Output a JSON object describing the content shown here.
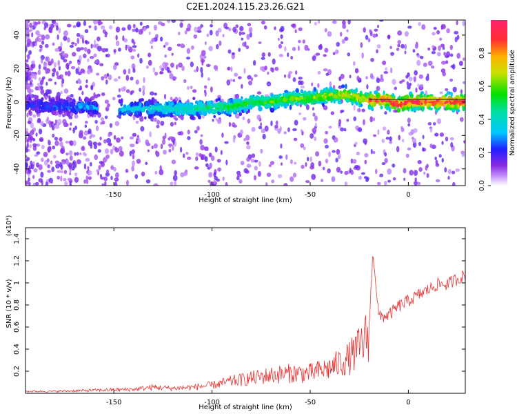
{
  "title": "C2E1.2024.115.23.26.G21",
  "chart_data": [
    {
      "type": "heatmap",
      "xlabel": "Height of straight line (km)",
      "ylabel": "Frequency (Hz)",
      "xlim": [
        -195,
        29
      ],
      "ylim": [
        -50,
        49
      ],
      "xticks": [
        -150,
        -100,
        -50,
        0
      ],
      "yticks": [
        -40,
        -20,
        0,
        20,
        40
      ],
      "colorbar": {
        "label": "Normalized spectral amplitude",
        "range": [
          0,
          1
        ],
        "ticks": [
          0.0,
          0.2,
          0.4,
          0.6,
          0.8
        ]
      },
      "ridge": {
        "x": [
          -195,
          -170,
          -160,
          -150,
          -147,
          -130,
          -110,
          -90,
          -80,
          -70,
          -60,
          -50,
          -40,
          -30,
          -20,
          -10,
          -5,
          0,
          10,
          20,
          29
        ],
        "y": [
          -2,
          -3,
          -3,
          -4,
          -4,
          -4,
          -4,
          -3,
          0,
          0,
          2,
          2,
          4,
          4,
          1,
          1,
          -2,
          0,
          0,
          0,
          0
        ]
      },
      "grid": false
    },
    {
      "type": "line",
      "xlabel": "Height of straight line (km)",
      "ylabel": "SNR (10 * v/v)",
      "y_multiplier": "(x10⁴)",
      "xlim": [
        -195,
        29
      ],
      "ylim": [
        0,
        1.5
      ],
      "xticks": [
        -150,
        -100,
        -50,
        0
      ],
      "yticks": [
        0.2,
        0.4,
        0.6,
        0.8,
        1.0,
        1.2,
        1.4
      ],
      "series": [
        {
          "color": "#e83030",
          "x": [
            -195,
            -180,
            -160,
            -140,
            -130,
            -120,
            -110,
            -100,
            -90,
            -80,
            -70,
            -60,
            -50,
            -40,
            -30,
            -25,
            -20,
            -18,
            -15,
            -10,
            -5,
            0,
            5,
            10,
            15,
            20,
            25,
            29
          ],
          "y": [
            0.02,
            0.02,
            0.03,
            0.04,
            0.06,
            0.05,
            0.06,
            0.08,
            0.12,
            0.15,
            0.18,
            0.2,
            0.2,
            0.25,
            0.35,
            0.45,
            0.6,
            1.3,
            0.7,
            0.72,
            0.8,
            0.85,
            0.9,
            0.95,
            1.0,
            1.0,
            1.05,
            1.08
          ]
        }
      ],
      "grid": false
    }
  ]
}
